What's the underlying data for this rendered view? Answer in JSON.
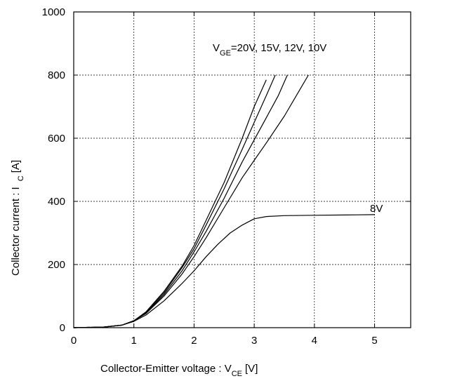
{
  "chart_data": {
    "type": "line",
    "title": "",
    "xlabel": {
      "main": "Collector-Emitter voltage : V",
      "sub": "CE",
      "unit": "[V]"
    },
    "ylabel": {
      "main": "Collector current : I",
      "sub": "C",
      "unit": "[A]"
    },
    "xlim": [
      0,
      5.6
    ],
    "ylim": [
      0,
      1000
    ],
    "xticks": [
      "0",
      "1",
      "2",
      "3",
      "4",
      "5"
    ],
    "yticks": [
      "0",
      "200",
      "400",
      "600",
      "800",
      "1000"
    ],
    "grid": true,
    "annotations": {
      "vge_label": {
        "main": "V",
        "sub": "GE",
        "rest": "=20V, 15V, 12V, 10V"
      },
      "label_8v": "8V"
    },
    "series": [
      {
        "label": "20V",
        "x": [
          0,
          0.5,
          0.8,
          1.0,
          1.2,
          1.5,
          1.8,
          2.0,
          2.2,
          2.5,
          2.8,
          3.0,
          3.2
        ],
        "y": [
          0,
          2,
          8,
          22,
          50,
          115,
          195,
          260,
          340,
          460,
          600,
          700,
          785
        ]
      },
      {
        "label": "15V",
        "x": [
          0,
          0.5,
          0.8,
          1.0,
          1.2,
          1.5,
          1.8,
          2.0,
          2.2,
          2.5,
          2.8,
          3.0,
          3.2,
          3.35
        ],
        "y": [
          0,
          2,
          8,
          22,
          48,
          110,
          190,
          250,
          325,
          440,
          565,
          650,
          735,
          800
        ]
      },
      {
        "label": "12V",
        "x": [
          0,
          0.5,
          0.8,
          1.0,
          1.2,
          1.5,
          1.8,
          2.0,
          2.2,
          2.5,
          2.8,
          3.0,
          3.2,
          3.4,
          3.55
        ],
        "y": [
          0,
          2,
          8,
          22,
          46,
          105,
          180,
          240,
          305,
          410,
          525,
          595,
          665,
          735,
          800
        ]
      },
      {
        "label": "10V",
        "x": [
          0,
          0.5,
          0.8,
          1.0,
          1.2,
          1.5,
          1.8,
          2.0,
          2.2,
          2.5,
          2.8,
          3.0,
          3.2,
          3.5,
          3.7,
          3.9
        ],
        "y": [
          0,
          2,
          8,
          22,
          45,
          100,
          170,
          225,
          285,
          380,
          475,
          530,
          585,
          670,
          735,
          800
        ]
      },
      {
        "label": "8V",
        "x": [
          0,
          0.5,
          0.8,
          1.0,
          1.2,
          1.5,
          1.8,
          2.0,
          2.2,
          2.4,
          2.6,
          2.8,
          3.0,
          3.2,
          3.5,
          4.0,
          4.5,
          5.0
        ],
        "y": [
          0,
          2,
          8,
          20,
          40,
          85,
          140,
          180,
          225,
          265,
          300,
          325,
          345,
          352,
          355,
          356,
          357,
          358
        ]
      }
    ]
  }
}
